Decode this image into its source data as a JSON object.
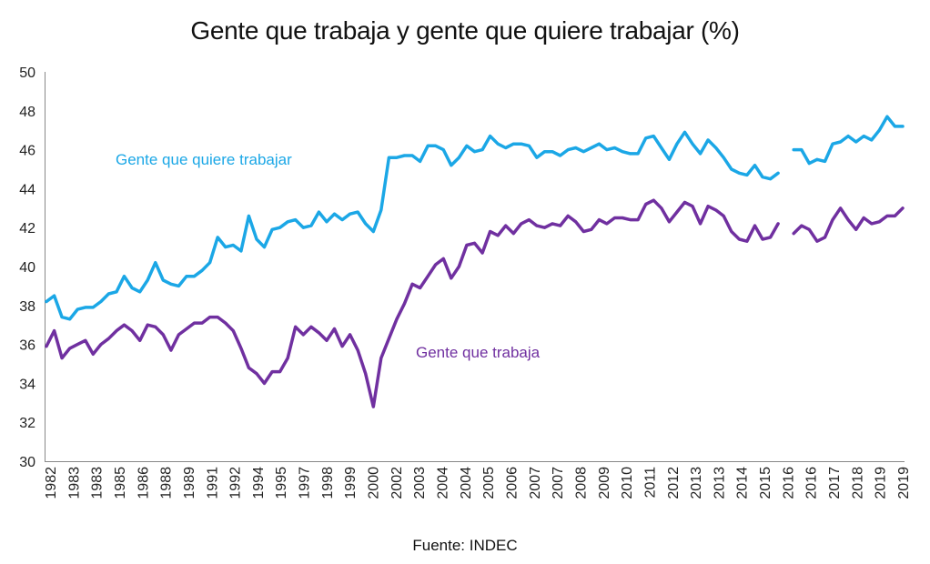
{
  "chart_data": {
    "type": "line",
    "title": "Gente que trabaja y gente que quiere trabajar (%)",
    "source": "Fuente: INDEC",
    "xlabel": "",
    "ylabel": "",
    "ylim": [
      30,
      50
    ],
    "yticks": [
      "30",
      "32",
      "34",
      "36",
      "38",
      "40",
      "42",
      "44",
      "46",
      "48",
      "50"
    ],
    "grid": false,
    "x_tick_labels": [
      "1982",
      "1983",
      "1983",
      "1985",
      "1986",
      "1988",
      "1989",
      "1991",
      "1992",
      "1994",
      "1995",
      "1997",
      "1998",
      "1999",
      "2000",
      "2002",
      "2003",
      "2004",
      "2004",
      "2005",
      "2006",
      "2007",
      "2007",
      "2008",
      "2009",
      "2010",
      "2011",
      "2012",
      "2013",
      "2013",
      "2014",
      "2015",
      "2016",
      "2016",
      "2017",
      "2018",
      "2019",
      "2019"
    ],
    "series": [
      {
        "name": "Gente que quiere trabajar",
        "color": "#1ba7e6",
        "values": [
          38.2,
          38.5,
          37.4,
          37.3,
          37.8,
          37.9,
          37.9,
          38.2,
          38.6,
          38.7,
          39.5,
          38.9,
          38.7,
          39.3,
          40.2,
          39.3,
          39.1,
          39.0,
          39.5,
          39.5,
          39.8,
          40.2,
          41.5,
          41.0,
          41.1,
          40.8,
          42.6,
          41.4,
          41.0,
          41.9,
          42.0,
          42.3,
          42.4,
          42.0,
          42.1,
          42.8,
          42.3,
          42.7,
          42.4,
          42.7,
          42.8,
          42.2,
          41.8,
          42.9,
          45.6,
          45.6,
          45.7,
          45.7,
          45.4,
          46.2,
          46.2,
          46.0,
          45.2,
          45.6,
          46.2,
          45.9,
          46.0,
          46.7,
          46.3,
          46.1,
          46.3,
          46.3,
          46.2,
          45.6,
          45.9,
          45.9,
          45.7,
          46.0,
          46.1,
          45.9,
          46.1,
          46.3,
          46.0,
          46.1,
          45.9,
          45.8,
          45.8,
          46.6,
          46.7,
          46.1,
          45.5,
          46.3,
          46.9,
          46.3,
          45.8,
          46.5,
          46.1,
          45.6,
          45.0,
          44.8,
          44.7,
          45.2,
          44.6,
          44.5,
          44.8,
          null,
          46.0,
          46.0,
          45.3,
          45.5,
          45.4,
          46.3,
          46.4,
          46.7,
          46.4,
          46.7,
          46.5,
          47.0,
          47.7,
          47.2,
          47.2
        ]
      },
      {
        "name": "Gente que trabaja",
        "color": "#7030a0",
        "values": [
          35.9,
          36.7,
          35.3,
          35.8,
          36.0,
          36.2,
          35.5,
          36.0,
          36.3,
          36.7,
          37.0,
          36.7,
          36.2,
          37.0,
          36.9,
          36.5,
          35.7,
          36.5,
          36.8,
          37.1,
          37.1,
          37.4,
          37.4,
          37.1,
          36.7,
          35.8,
          34.8,
          34.5,
          34.0,
          34.6,
          34.6,
          35.3,
          36.9,
          36.5,
          36.9,
          36.6,
          36.2,
          36.8,
          35.9,
          36.5,
          35.7,
          34.5,
          32.8,
          35.3,
          36.3,
          37.3,
          38.1,
          39.1,
          38.9,
          39.5,
          40.1,
          40.4,
          39.4,
          40.0,
          41.1,
          41.2,
          40.7,
          41.8,
          41.6,
          42.1,
          41.7,
          42.2,
          42.4,
          42.1,
          42.0,
          42.2,
          42.1,
          42.6,
          42.3,
          41.8,
          41.9,
          42.4,
          42.2,
          42.5,
          42.5,
          42.4,
          42.4,
          43.2,
          43.4,
          43.0,
          42.3,
          42.8,
          43.3,
          43.1,
          42.2,
          43.1,
          42.9,
          42.6,
          41.8,
          41.4,
          41.3,
          42.1,
          41.4,
          41.5,
          42.2,
          null,
          41.7,
          42.1,
          41.9,
          41.3,
          41.5,
          42.4,
          43.0,
          42.4,
          41.9,
          42.5,
          42.2,
          42.3,
          42.6,
          42.6,
          43.0
        ]
      }
    ],
    "annotations": [
      {
        "text": "Gente que quiere trabajar",
        "series": 0,
        "color": "#1ba7e6"
      },
      {
        "text": "Gente que trabaja",
        "series": 1,
        "color": "#7030a0"
      }
    ],
    "legend": "none"
  }
}
